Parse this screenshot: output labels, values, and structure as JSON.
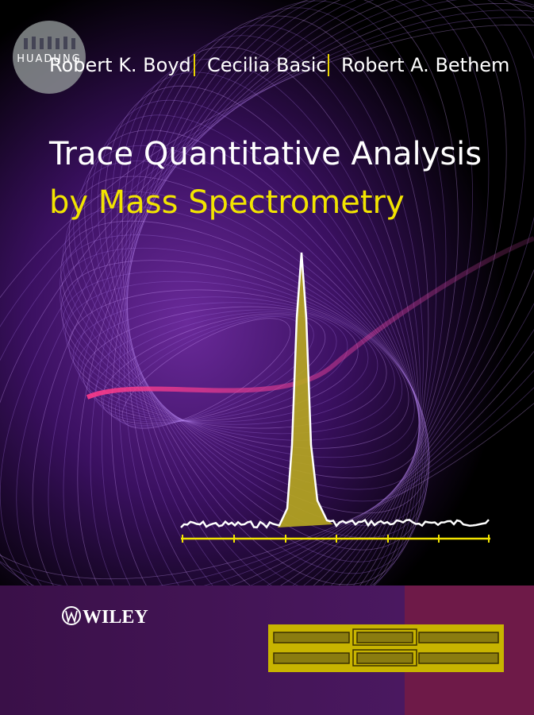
{
  "watermark": "HUADUNG",
  "authors": [
    "Robert K. Boyd",
    "Cecilia Basic",
    "Robert A. Bethem"
  ],
  "title": {
    "line1": "Trace Quantitative Analysis",
    "line2": "by Mass Spectrometry"
  },
  "publisher": "WILEY"
}
